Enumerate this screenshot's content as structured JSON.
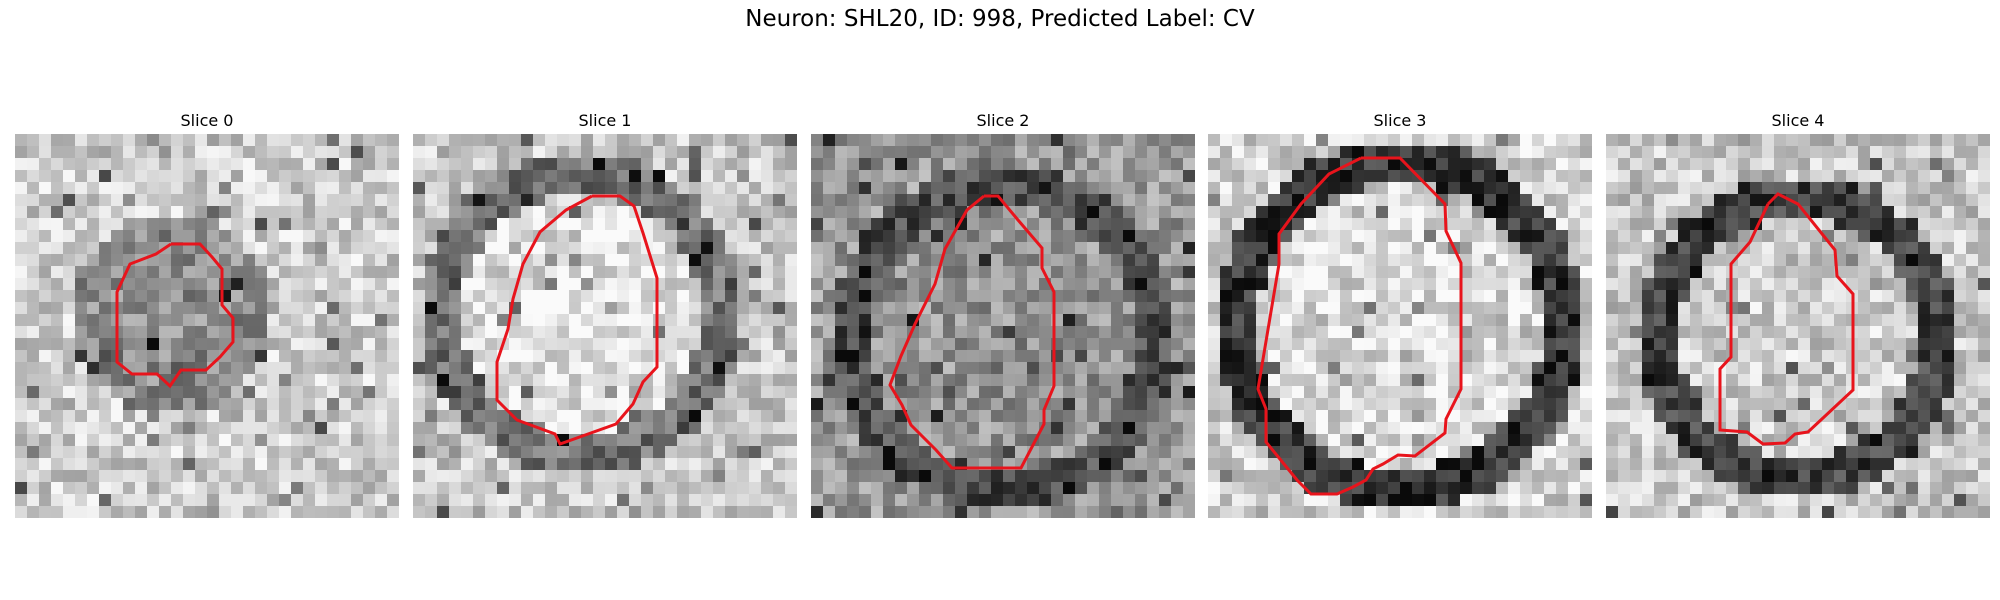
{
  "figure": {
    "title": "Neuron: SHL20, ID: 998, Predicted Label: CV",
    "panels": [
      {
        "title": "Slice 0"
      },
      {
        "title": "Slice 1"
      },
      {
        "title": "Slice 2"
      },
      {
        "title": "Slice 3"
      },
      {
        "title": "Slice 4"
      }
    ],
    "contour_color": "#e8141c",
    "colormap": "gray"
  }
}
